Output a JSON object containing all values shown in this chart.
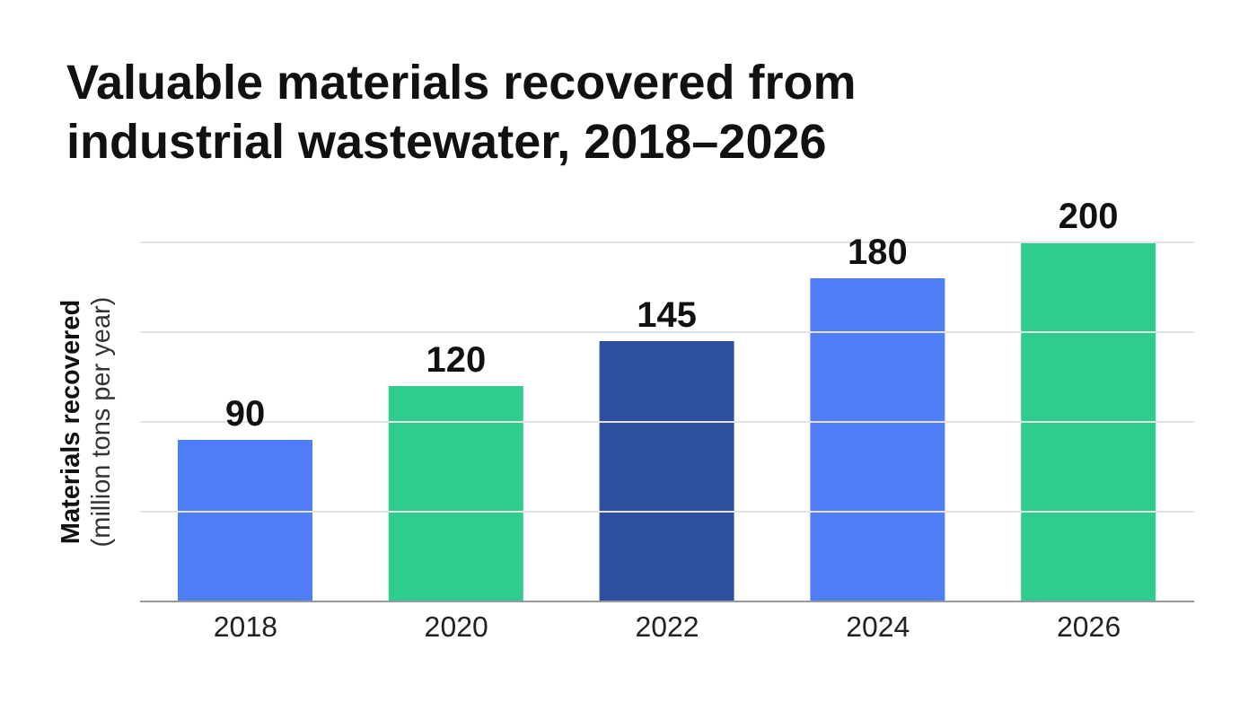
{
  "chart_data": {
    "type": "bar",
    "title": "Valuable materials recovered from industrial wastewater, 2018–2026",
    "ylabel": "Materials recovered\n(million tons per year)",
    "categories": [
      "2018",
      "2020",
      "2022",
      "2024",
      "2026"
    ],
    "values": [
      90,
      120,
      145,
      180,
      200
    ],
    "colors": [
      "#4f7ef7",
      "#2ecc8f",
      "#2e4fa0",
      "#4f7ef7",
      "#2ecc8f"
    ],
    "ylim": [
      0,
      200
    ],
    "yticks": [
      {
        "value": 0,
        "label": null
      },
      {
        "value": 50,
        "label": null
      },
      {
        "value": 100,
        "label": null
      },
      {
        "value": 150,
        "label": null
      },
      {
        "value": 200,
        "label": null
      }
    ],
    "grid": "y",
    "tick_labels": "x",
    "data_labels": true
  }
}
